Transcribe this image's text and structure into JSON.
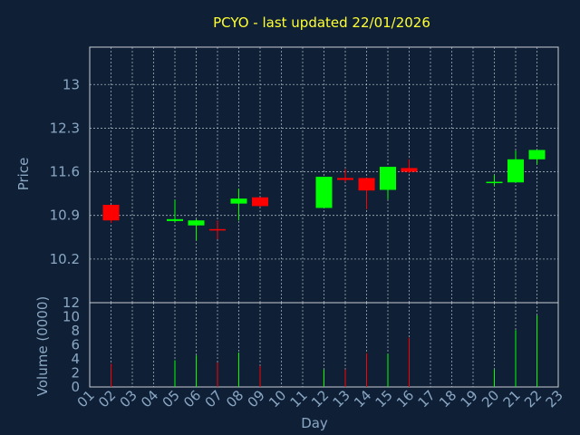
{
  "chart_data": {
    "type": "candlestick",
    "title": "PCYO - last updated 22/01/2026",
    "xlabel": "Day",
    "ylabel_price": "Price",
    "ylabel_volume": "Volume (0000)",
    "x_ticks": [
      "01",
      "02",
      "03",
      "04",
      "05",
      "06",
      "07",
      "08",
      "09",
      "10",
      "11",
      "12",
      "13",
      "14",
      "15",
      "16",
      "17",
      "18",
      "19",
      "20",
      "21",
      "22",
      "23"
    ],
    "price_ticks": [
      10.2,
      10.9,
      11.6,
      12.3,
      13
    ],
    "price_tick_labels": [
      "10.2",
      "10.9",
      "11.6",
      "12.3",
      "13"
    ],
    "price_range": [
      9.5,
      13.6
    ],
    "volume_ticks": [
      0,
      2,
      4,
      6,
      8,
      10,
      12
    ],
    "volume_range": [
      0,
      12
    ],
    "grid": true,
    "colors": {
      "up": "#00ff00",
      "down": "#ff0000",
      "background": "#0f2036",
      "title": "#ffff33",
      "axis_text": "#8aa7c4"
    },
    "candles": [
      {
        "day": 2,
        "open": 11.07,
        "high": 11.07,
        "low": 10.78,
        "close": 10.82,
        "volume": 3.3
      },
      {
        "day": 5,
        "open": 10.81,
        "high": 11.15,
        "low": 10.79,
        "close": 10.84,
        "volume": 3.8
      },
      {
        "day": 6,
        "open": 10.74,
        "high": 10.84,
        "low": 10.5,
        "close": 10.82,
        "volume": 4.5
      },
      {
        "day": 7,
        "open": 10.68,
        "high": 10.82,
        "low": 10.52,
        "close": 10.66,
        "volume": 3.5
      },
      {
        "day": 8,
        "open": 11.09,
        "high": 11.33,
        "low": 10.82,
        "close": 11.17,
        "volume": 4.9
      },
      {
        "day": 9,
        "open": 11.19,
        "high": 11.19,
        "low": 11.04,
        "close": 11.05,
        "volume": 3.0
      },
      {
        "day": 12,
        "open": 11.02,
        "high": 11.52,
        "low": 11.02,
        "close": 11.52,
        "volume": 2.5
      },
      {
        "day": 13,
        "open": 11.5,
        "high": 11.64,
        "low": 11.44,
        "close": 11.47,
        "volume": 2.5
      },
      {
        "day": 14,
        "open": 11.5,
        "high": 11.5,
        "low": 11.0,
        "close": 11.3,
        "volume": 4.8
      },
      {
        "day": 15,
        "open": 11.31,
        "high": 11.68,
        "low": 11.16,
        "close": 11.68,
        "volume": 4.7
      },
      {
        "day": 16,
        "open": 11.66,
        "high": 11.8,
        "low": 11.58,
        "close": 11.6,
        "volume": 7.0
      },
      {
        "day": 20,
        "open": 11.42,
        "high": 11.55,
        "low": 11.37,
        "close": 11.44,
        "volume": 2.5
      },
      {
        "day": 21,
        "open": 11.43,
        "high": 11.94,
        "low": 11.43,
        "close": 11.8,
        "volume": 8.1
      },
      {
        "day": 22,
        "open": 11.8,
        "high": 11.95,
        "low": 11.72,
        "close": 11.95,
        "volume": 10.2
      }
    ]
  }
}
